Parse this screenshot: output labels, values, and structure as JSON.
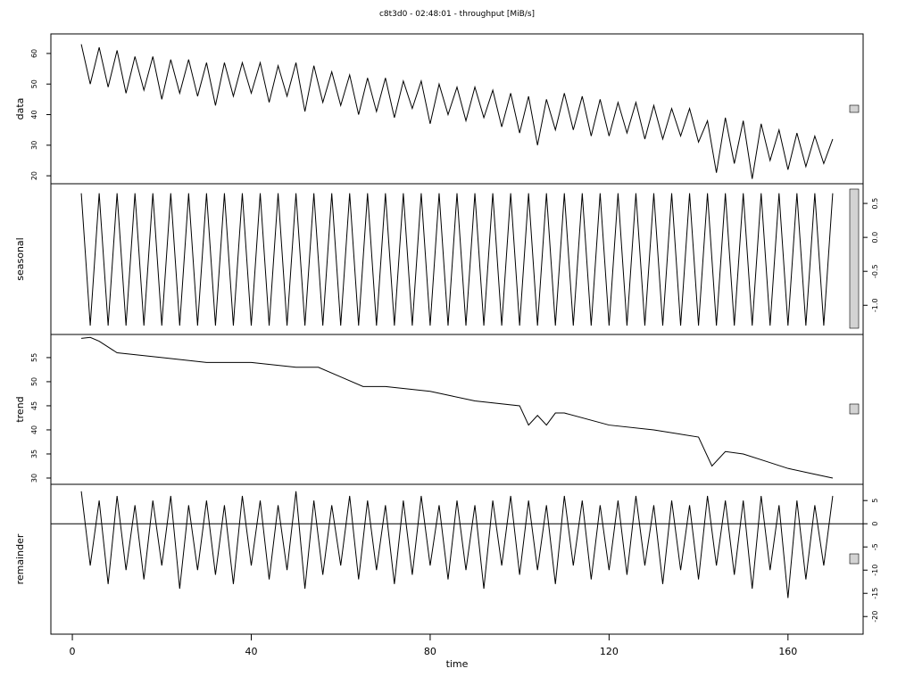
{
  "chart_data": [
    {
      "type": "line",
      "title": "c8t3d0 - 02:48:01 - throughput [MiB/s]",
      "y_label": "data",
      "axis_side": "left",
      "color": "#000000",
      "ylim": [
        17.4,
        66.4
      ],
      "yticks": [
        20,
        30,
        40,
        50,
        60
      ],
      "x": [
        2,
        4,
        6,
        8,
        10,
        12,
        14,
        16,
        18,
        20,
        22,
        24,
        26,
        28,
        30,
        32,
        34,
        36,
        38,
        40,
        42,
        44,
        46,
        48,
        50,
        52,
        54,
        56,
        58,
        60,
        62,
        64,
        66,
        68,
        70,
        72,
        74,
        76,
        78,
        80,
        82,
        84,
        86,
        88,
        90,
        92,
        94,
        96,
        98,
        100,
        102,
        104,
        106,
        108,
        110,
        112,
        114,
        116,
        118,
        120,
        122,
        124,
        126,
        128,
        130,
        132,
        134,
        136,
        138,
        140,
        142,
        144,
        146,
        148,
        150,
        152,
        154,
        156,
        158,
        160,
        162,
        164,
        166,
        168,
        170
      ],
      "values": [
        63,
        50,
        62,
        49,
        61,
        47,
        59,
        48,
        59,
        45,
        58,
        47,
        58,
        46,
        57,
        43,
        57,
        46,
        57,
        47,
        57,
        44,
        56,
        46,
        57,
        41,
        56,
        44,
        54,
        43,
        53,
        40,
        52,
        41,
        52,
        39,
        51,
        42,
        51,
        37,
        50,
        40,
        49,
        38,
        49,
        39,
        48,
        36,
        47,
        34,
        46,
        30,
        45,
        35,
        47,
        35,
        46,
        33,
        45,
        33,
        44,
        34,
        44,
        32,
        43,
        32,
        42,
        33,
        42,
        31,
        38,
        21,
        39,
        24,
        38,
        19,
        37,
        25,
        35,
        22,
        34,
        23,
        33,
        24,
        32
      ]
    },
    {
      "type": "line",
      "y_label": "seasonal",
      "axis_side": "right",
      "color": "#000000",
      "ylim": [
        -1.43,
        0.79
      ],
      "yticks": [
        {
          "value": -1,
          "label": "-1.0"
        },
        -0.5,
        {
          "value": 0,
          "label": "0.0"
        },
        0.5
      ],
      "x": [
        2,
        4,
        6,
        8,
        10,
        12,
        14,
        16,
        18,
        20,
        22,
        24,
        26,
        28,
        30,
        32,
        34,
        36,
        38,
        40,
        42,
        44,
        46,
        48,
        50,
        52,
        54,
        56,
        58,
        60,
        62,
        64,
        66,
        68,
        70,
        72,
        74,
        76,
        78,
        80,
        82,
        84,
        86,
        88,
        90,
        92,
        94,
        96,
        98,
        100,
        102,
        104,
        106,
        108,
        110,
        112,
        114,
        116,
        118,
        120,
        122,
        124,
        126,
        128,
        130,
        132,
        134,
        136,
        138,
        140,
        142,
        144,
        146,
        148,
        150,
        152,
        154,
        156,
        158,
        160,
        162,
        164,
        166,
        168,
        170
      ],
      "values": [
        0.65,
        -1.3,
        0.65,
        -1.3,
        0.65,
        -1.3,
        0.65,
        -1.3,
        0.65,
        -1.3,
        0.65,
        -1.3,
        0.65,
        -1.3,
        0.65,
        -1.3,
        0.65,
        -1.3,
        0.65,
        -1.3,
        0.65,
        -1.3,
        0.65,
        -1.3,
        0.65,
        -1.3,
        0.65,
        -1.3,
        0.65,
        -1.3,
        0.65,
        -1.3,
        0.65,
        -1.3,
        0.65,
        -1.3,
        0.65,
        -1.3,
        0.65,
        -1.3,
        0.65,
        -1.3,
        0.65,
        -1.3,
        0.65,
        -1.3,
        0.65,
        -1.3,
        0.65,
        -1.3,
        0.65,
        -1.3,
        0.65,
        -1.3,
        0.65,
        -1.3,
        0.65,
        -1.3,
        0.65,
        -1.3,
        0.65,
        -1.3,
        0.65,
        -1.3,
        0.65,
        -1.3,
        0.65,
        -1.3,
        0.65,
        -1.3,
        0.65,
        -1.3,
        0.65,
        -1.3,
        0.65,
        -1.3,
        0.65,
        -1.3,
        0.65,
        -1.3,
        0.65,
        -1.3,
        0.65,
        -1.3,
        0.65
      ]
    },
    {
      "type": "line",
      "y_label": "trend",
      "axis_side": "left",
      "color": "#000000",
      "ylim": [
        28.7,
        59.8
      ],
      "yticks": [
        30,
        35,
        40,
        45,
        50,
        55
      ],
      "x": [
        2,
        4,
        6,
        8,
        10,
        20,
        30,
        40,
        50,
        55,
        60,
        65,
        70,
        80,
        85,
        90,
        100,
        102,
        104,
        106,
        108,
        110,
        120,
        130,
        140,
        143,
        146,
        150,
        155,
        160,
        165,
        170
      ],
      "values": [
        59,
        59.2,
        58.4,
        57.2,
        56,
        55,
        54,
        54,
        53,
        53,
        51,
        49,
        49,
        48,
        47,
        46,
        45,
        41,
        43,
        41,
        43.5,
        43.5,
        41,
        40,
        38.5,
        32.5,
        35.5,
        35,
        33.5,
        32,
        31,
        30
      ]
    },
    {
      "type": "line",
      "y_label": "remainder",
      "axis_side": "right",
      "color": "#000000",
      "x_label": "time",
      "ylim": [
        -23.8,
        8.5
      ],
      "yticks": [
        -20,
        -15,
        -10,
        -5,
        0,
        5
      ],
      "xlim": [
        -4.8,
        176.8
      ],
      "xticks": [
        0,
        40,
        80,
        120,
        160
      ],
      "x": [
        2,
        4,
        6,
        8,
        10,
        12,
        14,
        16,
        18,
        20,
        22,
        24,
        26,
        28,
        30,
        32,
        34,
        36,
        38,
        40,
        42,
        44,
        46,
        48,
        50,
        52,
        54,
        56,
        58,
        60,
        62,
        64,
        66,
        68,
        70,
        72,
        74,
        76,
        78,
        80,
        82,
        84,
        86,
        88,
        90,
        92,
        94,
        96,
        98,
        100,
        102,
        104,
        106,
        108,
        110,
        112,
        114,
        116,
        118,
        120,
        122,
        124,
        126,
        128,
        130,
        132,
        134,
        136,
        138,
        140,
        142,
        144,
        146,
        148,
        150,
        152,
        154,
        156,
        158,
        160,
        162,
        164,
        166,
        168,
        170
      ],
      "values": [
        7,
        -9,
        5,
        -13,
        6,
        -10,
        4,
        -12,
        5,
        -9,
        6,
        -14,
        4,
        -10,
        5,
        -11,
        4,
        -13,
        6,
        -9,
        5,
        -12,
        4,
        -10,
        7,
        -14,
        5,
        -11,
        4,
        -9,
        6,
        -12,
        5,
        -10,
        4,
        -13,
        5,
        -11,
        6,
        -9,
        4,
        -12,
        5,
        -10,
        4,
        -14,
        5,
        -9,
        6,
        -11,
        5,
        -10,
        4,
        -13,
        6,
        -9,
        5,
        -12,
        4,
        -10,
        5,
        -11,
        6,
        -9,
        4,
        -13,
        5,
        -10,
        4,
        -12,
        6,
        -9,
        5,
        -11,
        5,
        -14,
        6,
        -10,
        4,
        -16,
        5,
        -12,
        4,
        -9,
        6
      ]
    }
  ]
}
